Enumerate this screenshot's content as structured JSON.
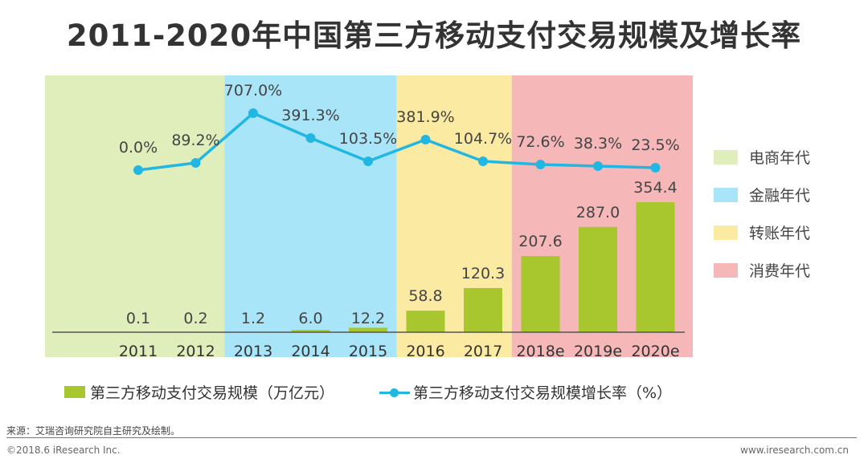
{
  "title": "2011-2020年中国第三方移动支付交易规模及增长率",
  "colors": {
    "bar": "#a8c62e",
    "line": "#22b7e3",
    "axis": "#555555",
    "text": "#444444"
  },
  "eras": [
    {
      "label": "电商年代",
      "color": "#e0eebc",
      "from": "2011",
      "to": "2012"
    },
    {
      "label": "金融年代",
      "color": "#a9e5f8",
      "from": "2013",
      "to": "2015"
    },
    {
      "label": "转账年代",
      "color": "#fbeaa2",
      "from": "2016",
      "to": "2017"
    },
    {
      "label": "消费年代",
      "color": "#f6b7b9",
      "from": "2018e",
      "to": "2020e"
    }
  ],
  "chart_data": {
    "type": "bar",
    "title": "2011-2020年中国第三方移动支付交易规模及增长率",
    "categories": [
      "2011",
      "2012",
      "2013",
      "2014",
      "2015",
      "2016",
      "2017",
      "2018e",
      "2019e",
      "2020e"
    ],
    "series": [
      {
        "name": "第三方移动支付交易规模（万亿元）",
        "type": "bar",
        "values": [
          0.1,
          0.2,
          1.2,
          6.0,
          12.2,
          58.8,
          120.3,
          207.6,
          287.0,
          354.4
        ],
        "labels": [
          "0.1",
          "0.2",
          "1.2",
          "6.0",
          "12.2",
          "58.8",
          "120.3",
          "207.6",
          "287.0",
          "354.4"
        ]
      },
      {
        "name": "第三方移动支付交易规模增长率（%）",
        "type": "line",
        "values": [
          0.0,
          89.2,
          707.0,
          391.3,
          103.5,
          381.9,
          104.7,
          72.6,
          38.3,
          23.5
        ],
        "labels": [
          "0.0%",
          "89.2%",
          "707.0%",
          "391.3%",
          "103.5%",
          "381.9%",
          "104.7%",
          "72.6%",
          "38.3%",
          "23.5%"
        ]
      }
    ],
    "xlabel": "",
    "ylabel": "",
    "legend": "bottom"
  },
  "legend": {
    "bar_label": "第三方移动支付交易规模（万亿元）",
    "line_label": "第三方移动支付交易规模增长率（%）"
  },
  "footer": {
    "source": "来源：艾瑞咨询研究院自主研究及绘制。",
    "copyright": "©2018.6 iResearch Inc.",
    "website": "www.iresearch.com.cn"
  }
}
